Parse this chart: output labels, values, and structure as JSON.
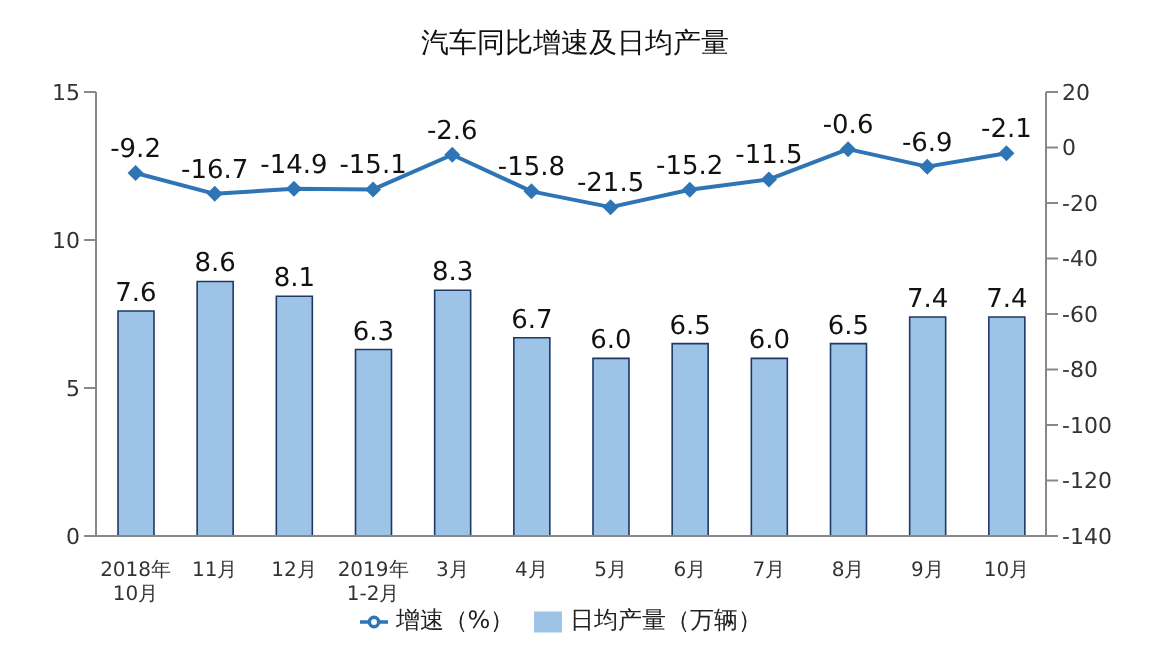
{
  "chart_data": {
    "type": "bar",
    "title": "汽车同比增速及日均产量",
    "categories": [
      "2018年\n10月",
      "11月",
      "12月",
      "2019年\n1-2月",
      "3月",
      "4月",
      "5月",
      "6月",
      "7月",
      "8月",
      "9月",
      "10月"
    ],
    "series": [
      {
        "name": "日均产量（万辆）",
        "color": "#9dc3e6",
        "values": [
          7.6,
          8.6,
          8.1,
          6.3,
          8.3,
          6.7,
          6.0,
          6.5,
          6.0,
          6.5,
          7.4,
          7.4
        ],
        "value_labels": [
          "7.6",
          "8.6",
          "8.1",
          "6.3",
          "8.3",
          "6.7",
          "6.0",
          "6.5",
          "6.0",
          "6.5",
          "7.4",
          "7.4"
        ]
      },
      {
        "name": "增速（%）",
        "type": "line",
        "axis": "y2",
        "color": "#2e75b6",
        "values": [
          -9.2,
          -16.7,
          -14.9,
          -15.1,
          -2.6,
          -15.8,
          -21.5,
          -15.2,
          -11.5,
          -0.6,
          -6.9,
          -2.1
        ],
        "value_labels": [
          "-9.2",
          "-16.7",
          "-14.9",
          "-15.1",
          "-2.6",
          "-15.8",
          "-21.5",
          "-15.2",
          "-11.5",
          "-0.6",
          "-6.9",
          "-2.1"
        ]
      }
    ],
    "ylim": [
      0,
      15
    ],
    "yticks": [
      0,
      5,
      10,
      15
    ],
    "y2lim": [
      -140,
      20
    ],
    "y2ticks": [
      20,
      0,
      -20,
      -40,
      -60,
      -80,
      -100,
      -120,
      -140
    ],
    "legend": "bottom",
    "marker": "diamond",
    "line_style": "solid",
    "grid": false
  }
}
